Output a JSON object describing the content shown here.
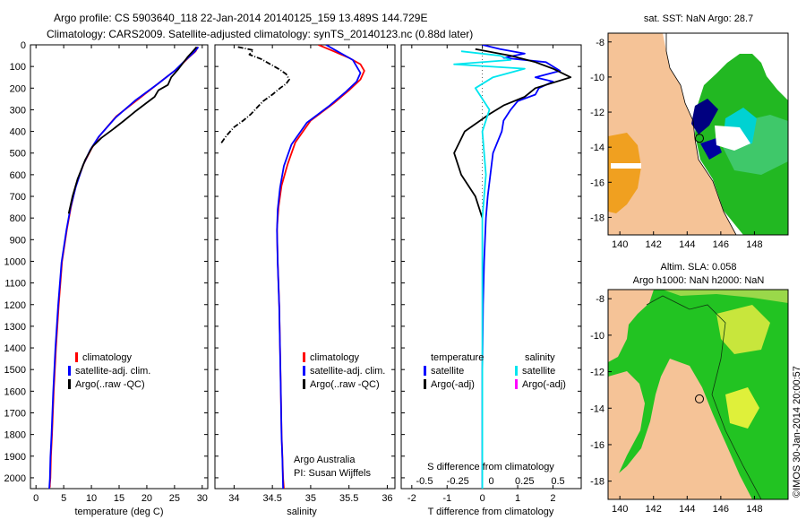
{
  "header": {
    "line1": "Argo profile: CS 5903640_118 22-Jan-2014 20140125_159 13.489S 144.729E",
    "line2": "Climatology: CARS2009. Satellite-adjusted climatology: synTS_20140123.nc (0.88d later)"
  },
  "colors": {
    "climatology": "#ff0000",
    "satellite": "#0000ff",
    "argo": "#000000",
    "salinity_satellite": "#00e5ee",
    "salinity_argo": "#ff00ff",
    "land": "#f5c397",
    "ocean_green": "#22c322"
  },
  "depth_axis": {
    "range": [
      0,
      2050
    ],
    "ticks": [
      0,
      100,
      200,
      300,
      400,
      500,
      600,
      700,
      800,
      900,
      1000,
      1100,
      1200,
      1300,
      1400,
      1500,
      1600,
      1700,
      1800,
      1900,
      2000
    ]
  },
  "chart_data": [
    {
      "type": "line",
      "xlabel": "temperature (deg C)",
      "xlim": [
        -1,
        31
      ],
      "xticks": [
        0,
        5,
        10,
        15,
        20,
        25,
        30
      ],
      "ylim": [
        2050,
        0
      ],
      "legend": [
        "climatology",
        "satellite-adj. clim.",
        "Argo(..raw -QC)"
      ],
      "series": [
        {
          "name": "climatology",
          "x": [
            29.2,
            28.8,
            27.5,
            25.5,
            22.5,
            18.5,
            14.5,
            11.5,
            10,
            8.6,
            7.2,
            6.3,
            5.6,
            4.7,
            4.1,
            3.6,
            3.2,
            2.9,
            2.7,
            2.6,
            2.5,
            2.5,
            2.4
          ],
          "depth": [
            10,
            30,
            60,
            110,
            170,
            250,
            330,
            420,
            480,
            550,
            650,
            750,
            850,
            1000,
            1200,
            1400,
            1600,
            1800,
            1900,
            2000,
            2030,
            2040,
            2050
          ]
        },
        {
          "name": "satellite-adj. clim.",
          "x": [
            29.3,
            28.5,
            27,
            25,
            22,
            18,
            14.4,
            11.3,
            9.8,
            8.5,
            7.2,
            6.2,
            5.5,
            4.6,
            4.0,
            3.5,
            3.1,
            2.8,
            2.6,
            2.5,
            2.4
          ],
          "depth": [
            10,
            35,
            70,
            120,
            180,
            255,
            335,
            425,
            485,
            555,
            655,
            755,
            855,
            1005,
            1205,
            1405,
            1605,
            1805,
            1905,
            2005,
            2050
          ]
        },
        {
          "name": "Argo(..raw -QC)",
          "x": [
            29.0,
            28.3,
            27.4,
            26.5,
            25.6,
            24.4,
            23.8,
            22.1,
            21.4,
            19.6,
            17.8,
            15.9,
            13.9,
            11.8,
            10.2,
            8.9,
            7.5,
            6.6,
            5.9
          ],
          "depth": [
            10,
            30,
            55,
            85,
            115,
            150,
            185,
            210,
            240,
            275,
            310,
            350,
            390,
            430,
            470,
            530,
            620,
            700,
            780
          ]
        }
      ]
    },
    {
      "type": "line",
      "xlabel": "salinity",
      "xlim": [
        33.75,
        36.1
      ],
      "xticks": [
        34,
        34.5,
        35,
        35.5,
        36
      ],
      "xticklabels": [
        "34",
        "34.5",
        "35",
        "35.5",
        "36"
      ],
      "ylim": [
        2050,
        0
      ],
      "legend": [
        "climatology",
        "satellite-adj. clim.",
        "Argo(..raw -QC)"
      ],
      "annotation": [
        "Argo Australia",
        "PI: Susan Wijffels"
      ],
      "series": [
        {
          "name": "climatology",
          "x": [
            35.1,
            35.3,
            35.5,
            35.65,
            35.7,
            35.65,
            35.5,
            35.3,
            35.0,
            34.8,
            34.7,
            34.62,
            34.58,
            34.56,
            34.57,
            34.59,
            34.6,
            34.61,
            34.62,
            34.63,
            34.64,
            34.65
          ],
          "depth": [
            0,
            30,
            60,
            90,
            120,
            160,
            210,
            270,
            350,
            450,
            550,
            650,
            750,
            850,
            1000,
            1200,
            1400,
            1600,
            1800,
            1900,
            2000,
            2050
          ]
        },
        {
          "name": "satellite-adj. clim.",
          "x": [
            35.2,
            35.4,
            35.55,
            35.6,
            35.65,
            35.6,
            35.45,
            35.25,
            34.95,
            34.75,
            34.65,
            34.6,
            34.57,
            34.56,
            34.57,
            34.59,
            34.6,
            34.61,
            34.62,
            34.63,
            34.64
          ],
          "depth": [
            0,
            40,
            70,
            100,
            130,
            170,
            220,
            280,
            360,
            460,
            560,
            660,
            760,
            860,
            1010,
            1210,
            1410,
            1610,
            1810,
            1910,
            2050
          ]
        },
        {
          "name": "Argo(..raw -QC)",
          "x": [
            34.05,
            34.25,
            34.2,
            34.35,
            34.4,
            34.5,
            34.6,
            34.68,
            34.72,
            34.68,
            34.6,
            34.5,
            34.38,
            34.3,
            34.22,
            34.12,
            34.0,
            33.9,
            33.82
          ],
          "depth": [
            10,
            25,
            45,
            65,
            75,
            95,
            115,
            135,
            160,
            180,
            200,
            230,
            260,
            290,
            320,
            350,
            380,
            420,
            460
          ]
        }
      ]
    },
    {
      "type": "line",
      "xlabel": "T difference from climatology",
      "x2label": "S difference from climatology",
      "xlim": [
        -2.3,
        2.8
      ],
      "xticks": [
        -2,
        -1,
        0,
        1,
        2
      ],
      "x2ticks": [
        -0.5,
        -0.25,
        0,
        0.25,
        0.5
      ],
      "ylim": [
        2050,
        0
      ],
      "legend_title_temperature": "temperature",
      "legend_title_salinity": "salinity",
      "legend": [
        "satellite",
        "Argo(-adj)",
        "satellite",
        "Argo(-adj)"
      ],
      "series": [
        {
          "name": "temperature satellite",
          "x": [
            0,
            0.5,
            1.2,
            0.6,
            1.8,
            2.2,
            1.5,
            2.0,
            1.6,
            1.5,
            1.0,
            0.8,
            0.6,
            0.55,
            0.3,
            0.15,
            0.1,
            0.05,
            0.02,
            0,
            0,
            0
          ],
          "depth": [
            0,
            20,
            40,
            60,
            80,
            120,
            150,
            170,
            200,
            230,
            260,
            300,
            350,
            400,
            500,
            700,
            800,
            1000,
            1200,
            1500,
            1800,
            2050
          ]
        },
        {
          "name": "temperature Argo(-adj)",
          "x": [
            -0.2,
            0.8,
            1.5,
            2.0,
            2.5,
            1.5,
            1.2,
            0.6,
            0.2,
            -0.5,
            -0.8,
            -0.6,
            -0.2,
            0
          ],
          "depth": [
            20,
            50,
            80,
            110,
            150,
            200,
            240,
            280,
            320,
            400,
            500,
            600,
            700,
            800
          ]
        },
        {
          "name": "salinity satellite",
          "x": [
            -0.6,
            0.5,
            0.8,
            -0.8,
            1.2,
            0.3,
            -0.2,
            0.2,
            0,
            0.1,
            0,
            0,
            0
          ],
          "depth": [
            30,
            50,
            70,
            90,
            110,
            150,
            200,
            300,
            400,
            600,
            800,
            1200,
            2050
          ]
        },
        {
          "name": "salinity Argo(-adj)",
          "x": [],
          "depth": []
        }
      ]
    },
    {
      "type": "heatmap",
      "title": "sat. SST: NaN Argo: 28.7",
      "xticks": [
        140,
        142,
        144,
        146,
        148
      ],
      "yticks": [
        -8,
        -10,
        -12,
        -14,
        -16,
        -18
      ],
      "xlim": [
        139.3,
        150
      ],
      "ylim": [
        -19,
        -7.5
      ],
      "profile_location": [
        144.729,
        -13.489
      ]
    },
    {
      "type": "heatmap",
      "title_line1": "Altim. SLA: 0.058",
      "title_line2": "Argo h1000: NaN h2000: NaN",
      "xticks": [
        140,
        142,
        144,
        146,
        148
      ],
      "yticks": [
        -8,
        -10,
        -12,
        -14,
        -16,
        -18
      ],
      "xlim": [
        139.3,
        150
      ],
      "ylim": [
        -19,
        -7.5
      ],
      "profile_location": [
        144.729,
        -13.489
      ]
    }
  ],
  "side_caption": "©IMOS 30-Jan-2014 20:00:57"
}
